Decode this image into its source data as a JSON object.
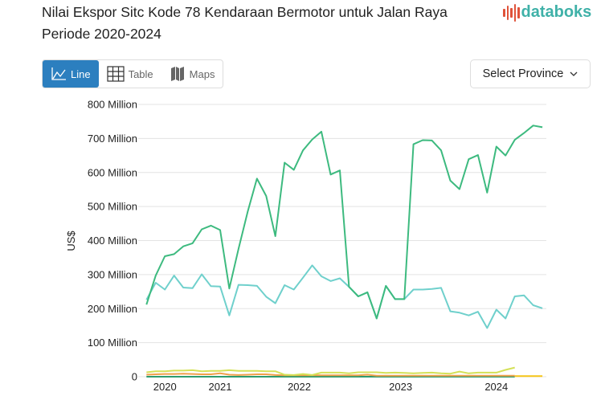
{
  "header": {
    "title": "Nilai Ekspor Sitc Kode 78 Kendaraan Bermotor untuk Jalan Raya Periode 2020-2024",
    "logo": "databoks"
  },
  "tabs": [
    {
      "label": "Line",
      "icon": "line-chart-icon",
      "active": true
    },
    {
      "label": "Table",
      "icon": "table-icon"
    },
    {
      "label": "Maps",
      "icon": "map-icon"
    }
  ],
  "province_select": {
    "label": "Select Province",
    "icon": "chevron-down-icon"
  },
  "colors": {
    "accent": "#2c7fbf",
    "s1": "#3dba7f",
    "s2": "#6fd0cc",
    "s3": "#d4e157",
    "s4": "#f0a04b",
    "s5": "#2e9c6e",
    "s6": "#f5c518"
  },
  "chart_data": {
    "type": "line",
    "title": "",
    "ylabel": "US$",
    "ylim": [
      0,
      800000000
    ],
    "yticks": [
      "0",
      "100 Million",
      "200 Million",
      "300 Million",
      "400 Million",
      "500 Million",
      "600 Million",
      "700 Million",
      "800 Million"
    ],
    "xticks": [
      "2020",
      "2021",
      "2022",
      "2023",
      "2024"
    ],
    "grid": true,
    "series": [
      {
        "color": "#3dba7f",
        "values": [
          212,
          297,
          354,
          360,
          383,
          392,
          433,
          444,
          431,
          259,
          376,
          486,
          582,
          531,
          413,
          629,
          608,
          665,
          697,
          720,
          594,
          606,
          264,
          236,
          248,
          171,
          267,
          228,
          228,
          683,
          695,
          694,
          665,
          576,
          551,
          639,
          651,
          541,
          676,
          650,
          696,
          716,
          738,
          733
        ]
      },
      {
        "color": "#6fd0cc",
        "values": [
          226,
          276,
          256,
          297,
          262,
          260,
          301,
          266,
          265,
          180,
          270,
          269,
          267,
          235,
          216,
          269,
          256,
          291,
          327,
          295,
          281,
          289,
          264,
          236,
          248,
          171,
          267,
          228,
          228,
          256,
          256,
          258,
          261,
          192,
          188,
          180,
          191,
          143,
          197,
          171,
          236,
          239,
          210,
          201
        ]
      },
      {
        "color": "#d4e157",
        "values": [
          13,
          16,
          16,
          18,
          18,
          19,
          16,
          17,
          17,
          19,
          17,
          17,
          17,
          16,
          16,
          6,
          5,
          8,
          5,
          12,
          12,
          12,
          10,
          13,
          13,
          13,
          11,
          12,
          11,
          10,
          11,
          12,
          10,
          9,
          15,
          10,
          12,
          12,
          12,
          20,
          27
        ]
      },
      {
        "color": "#f0a04b",
        "values": [
          6,
          7,
          8,
          8,
          9,
          8,
          7,
          7,
          10,
          6,
          5,
          6,
          7,
          7,
          5,
          4,
          4,
          4,
          4,
          4,
          4,
          4,
          4,
          4,
          6,
          3,
          3,
          3,
          3,
          3,
          3,
          3,
          3,
          3,
          3,
          3,
          3,
          3,
          3,
          3,
          3
        ]
      },
      {
        "color": "#2e9c6e",
        "values": [
          0,
          0,
          0,
          0,
          0,
          0,
          0,
          0,
          0,
          0,
          0,
          0,
          0,
          0,
          0,
          0,
          0,
          0,
          0,
          0,
          0,
          0,
          0,
          0,
          0,
          0,
          0,
          0,
          0,
          0,
          0,
          0,
          0,
          0,
          0,
          0,
          0,
          0,
          0,
          0,
          0
        ]
      },
      {
        "color": "#f5c518",
        "values": [
          null,
          null,
          null,
          null,
          null,
          null,
          null,
          null,
          null,
          null,
          null,
          null,
          null,
          null,
          null,
          null,
          null,
          null,
          null,
          null,
          null,
          null,
          null,
          null,
          null,
          null,
          null,
          null,
          null,
          null,
          null,
          null,
          null,
          null,
          null,
          null,
          null,
          null,
          null,
          null,
          2,
          2,
          2,
          2
        ]
      }
    ],
    "value_unit": "Million"
  }
}
